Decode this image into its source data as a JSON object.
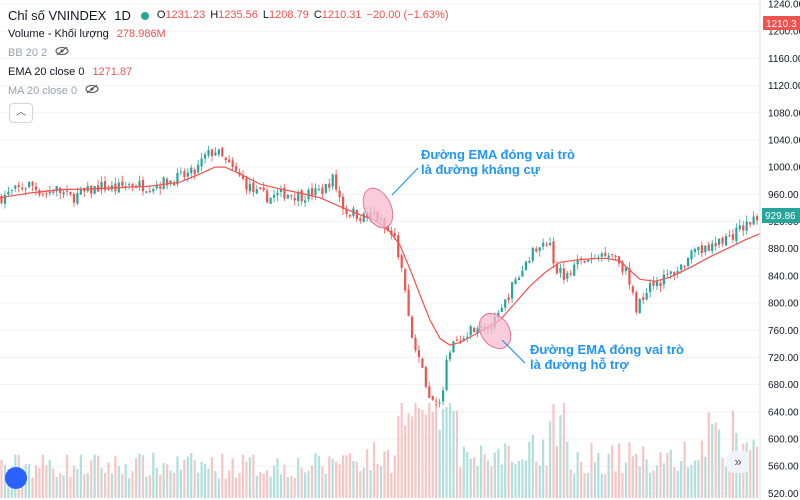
{
  "legend": {
    "title": "Chỉ số VNINDEX",
    "interval": "1D",
    "ohlc": {
      "o_key": "O",
      "o": "1231.23",
      "h_key": "H",
      "h": "1235.56",
      "l_key": "L",
      "l": "1208.79",
      "c_key": "C",
      "c": "1210.31",
      "change": "−20.00 (−1.63%)"
    },
    "volume_label": "Volume - Khối lượng",
    "volume_value": "278.986M",
    "bb_label": "BB 20 2",
    "ema_label": "EMA 20 close 0",
    "ema_value": "1271.87",
    "ma_label": "MA 20 close 0"
  },
  "annotations": {
    "resistance_line1": "Đường EMA đóng vai trò",
    "resistance_line2": "là đường kháng cự",
    "support_line1": "Đường EMA đóng vai trò",
    "support_line2": "là đường hỗ trợ"
  },
  "colors": {
    "up": "#26a69a",
    "down": "#ef5350",
    "ema": "#ef5350",
    "annotation": "#2196f3",
    "highlight": "#f8bbd0"
  },
  "chart_data": {
    "type": "candlestick",
    "price_axis": {
      "ticks": [
        1240,
        1200,
        1160,
        1120,
        1080,
        1040,
        1000,
        960,
        920,
        880,
        840,
        800,
        760,
        720,
        680,
        640,
        600,
        560,
        520
      ],
      "tick_labels": [
        "1240.00",
        "1200.00",
        "1160.00",
        "1120.00",
        "1080.00",
        "1040.00",
        "1000.00",
        "960.00",
        "920.00",
        "880.00",
        "840.00",
        "800.00",
        "760.00",
        "720.00",
        "680.00",
        "640.00",
        "600.00",
        "560.00",
        "520.00"
      ],
      "range": [
        518,
        1246
      ]
    },
    "last_price_label": "929.86",
    "top_price_label": "1210.3",
    "price_path": [
      [
        0,
        955
      ],
      [
        15,
        965
      ],
      [
        30,
        975
      ],
      [
        45,
        960
      ],
      [
        55,
        968
      ],
      [
        70,
        955
      ],
      [
        85,
        962
      ],
      [
        100,
        972
      ],
      [
        115,
        968
      ],
      [
        130,
        975
      ],
      [
        150,
        972
      ],
      [
        165,
        978
      ],
      [
        180,
        985
      ],
      [
        195,
        992
      ],
      [
        205,
        1015
      ],
      [
        215,
        1025
      ],
      [
        225,
        1008
      ],
      [
        240,
        985
      ],
      [
        255,
        962
      ],
      [
        270,
        955
      ],
      [
        285,
        962
      ],
      [
        300,
        958
      ],
      [
        315,
        962
      ],
      [
        325,
        968
      ],
      [
        332,
        985
      ],
      [
        338,
        962
      ],
      [
        345,
        935
      ],
      [
        355,
        932
      ],
      [
        365,
        925
      ],
      [
        375,
        930
      ],
      [
        385,
        908
      ],
      [
        395,
        895
      ],
      [
        403,
        840
      ],
      [
        408,
        785
      ],
      [
        413,
        742
      ],
      [
        418,
        715
      ],
      [
        422,
        705
      ],
      [
        428,
        668
      ],
      [
        433,
        652
      ],
      [
        438,
        658
      ],
      [
        443,
        672
      ],
      [
        448,
        722
      ],
      [
        453,
        742
      ],
      [
        460,
        752
      ],
      [
        470,
        762
      ],
      [
        480,
        772
      ],
      [
        490,
        762
      ],
      [
        500,
        782
      ],
      [
        510,
        818
      ],
      [
        520,
        842
      ],
      [
        530,
        872
      ],
      [
        540,
        880
      ],
      [
        550,
        895
      ],
      [
        555,
        852
      ],
      [
        565,
        842
      ],
      [
        575,
        858
      ],
      [
        585,
        862
      ],
      [
        595,
        862
      ],
      [
        605,
        878
      ],
      [
        615,
        870
      ],
      [
        625,
        850
      ],
      [
        633,
        808
      ],
      [
        637,
        790
      ],
      [
        643,
        812
      ],
      [
        650,
        832
      ],
      [
        660,
        832
      ],
      [
        670,
        842
      ],
      [
        680,
        852
      ],
      [
        690,
        868
      ],
      [
        700,
        875
      ],
      [
        710,
        880
      ],
      [
        720,
        892
      ],
      [
        730,
        898
      ],
      [
        740,
        908
      ],
      [
        750,
        918
      ],
      [
        760,
        929
      ]
    ],
    "ema_path": [
      [
        0,
        955
      ],
      [
        30,
        962
      ],
      [
        60,
        967
      ],
      [
        90,
        968
      ],
      [
        120,
        970
      ],
      [
        150,
        972
      ],
      [
        180,
        978
      ],
      [
        200,
        990
      ],
      [
        215,
        1000
      ],
      [
        225,
        1000
      ],
      [
        240,
        990
      ],
      [
        260,
        975
      ],
      [
        280,
        968
      ],
      [
        300,
        962
      ],
      [
        320,
        955
      ],
      [
        340,
        942
      ],
      [
        360,
        930
      ],
      [
        375,
        922
      ],
      [
        390,
        905
      ],
      [
        400,
        885
      ],
      [
        410,
        850
      ],
      [
        420,
        812
      ],
      [
        430,
        775
      ],
      [
        440,
        748
      ],
      [
        450,
        738
      ],
      [
        460,
        742
      ],
      [
        470,
        750
      ],
      [
        485,
        762
      ],
      [
        500,
        775
      ],
      [
        515,
        800
      ],
      [
        530,
        825
      ],
      [
        545,
        845
      ],
      [
        560,
        860
      ],
      [
        575,
        863
      ],
      [
        590,
        865
      ],
      [
        605,
        866
      ],
      [
        620,
        862
      ],
      [
        630,
        848
      ],
      [
        640,
        835
      ],
      [
        655,
        832
      ],
      [
        670,
        838
      ],
      [
        690,
        852
      ],
      [
        710,
        868
      ],
      [
        730,
        882
      ],
      [
        745,
        893
      ],
      [
        760,
        902
      ]
    ],
    "volume": {
      "label": "Volume - Khối lượng",
      "last_value": "278.986M",
      "note": "bars drawn relative to series max"
    }
  }
}
